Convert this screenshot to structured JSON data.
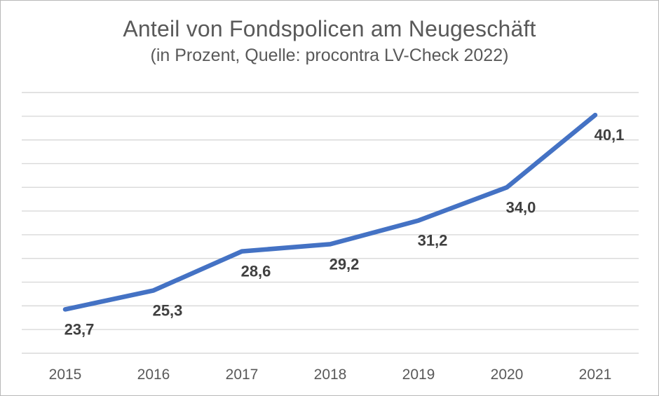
{
  "chart_data": {
    "type": "line",
    "title": "Anteil von Fondspolicen am Neugeschäft",
    "subtitle": "(in Prozent, Quelle: procontra LV-Check 2022)",
    "categories": [
      "2015",
      "2016",
      "2017",
      "2018",
      "2019",
      "2020",
      "2021"
    ],
    "values": [
      23.7,
      25.3,
      28.6,
      29.2,
      31.2,
      34.0,
      40.1
    ],
    "value_labels": [
      "23,7",
      "25,3",
      "28,6",
      "29,2",
      "31,2",
      "34,0",
      "40,1"
    ],
    "xlabel": "",
    "ylabel": "",
    "ylim": [
      20,
      42
    ],
    "grid_step": 2,
    "grid_on": true,
    "legend_position": "none",
    "colors": {
      "line": "#4472C4",
      "data_label": "#404040",
      "axis_label": "#595959",
      "gridline": "#D9D9D9",
      "title": "#595959"
    }
  }
}
